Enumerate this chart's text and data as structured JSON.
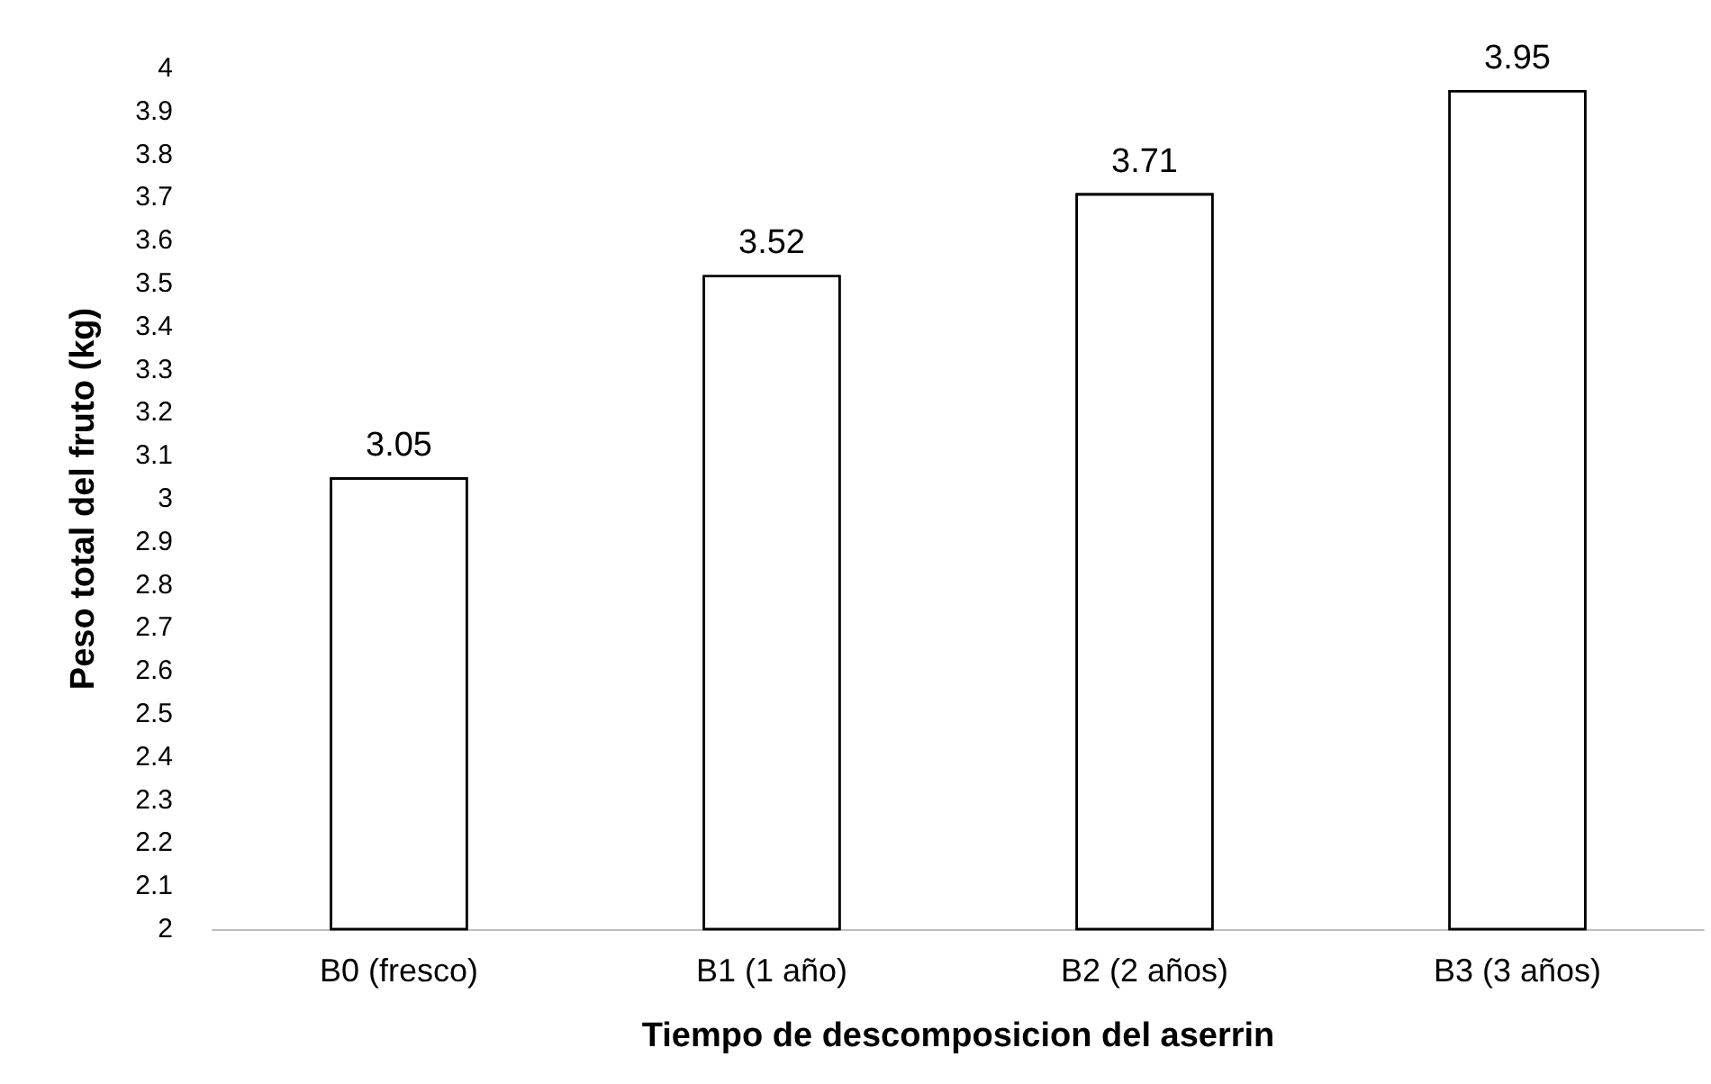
{
  "chart_data": {
    "type": "bar",
    "xlabel": "Tiempo de descomposicion del aserrin",
    "ylabel": "Peso total del fruto (kg)",
    "categories": [
      "B0 (fresco)",
      "B1 (1 año)",
      "B2 (2 años)",
      "B3 (3 años)"
    ],
    "values": [
      3.05,
      3.52,
      3.71,
      3.95
    ],
    "color": "#ffffff",
    "ylim": [
      2,
      4
    ],
    "yticks": [
      2,
      2.1,
      2.2,
      2.3,
      2.4,
      2.5,
      2.6,
      2.7,
      2.8,
      2.9,
      3,
      3.1,
      3.2,
      3.3,
      3.4,
      3.5,
      3.6,
      3.7,
      3.8,
      3.9,
      4
    ],
    "grid": false,
    "data_labels": true
  }
}
